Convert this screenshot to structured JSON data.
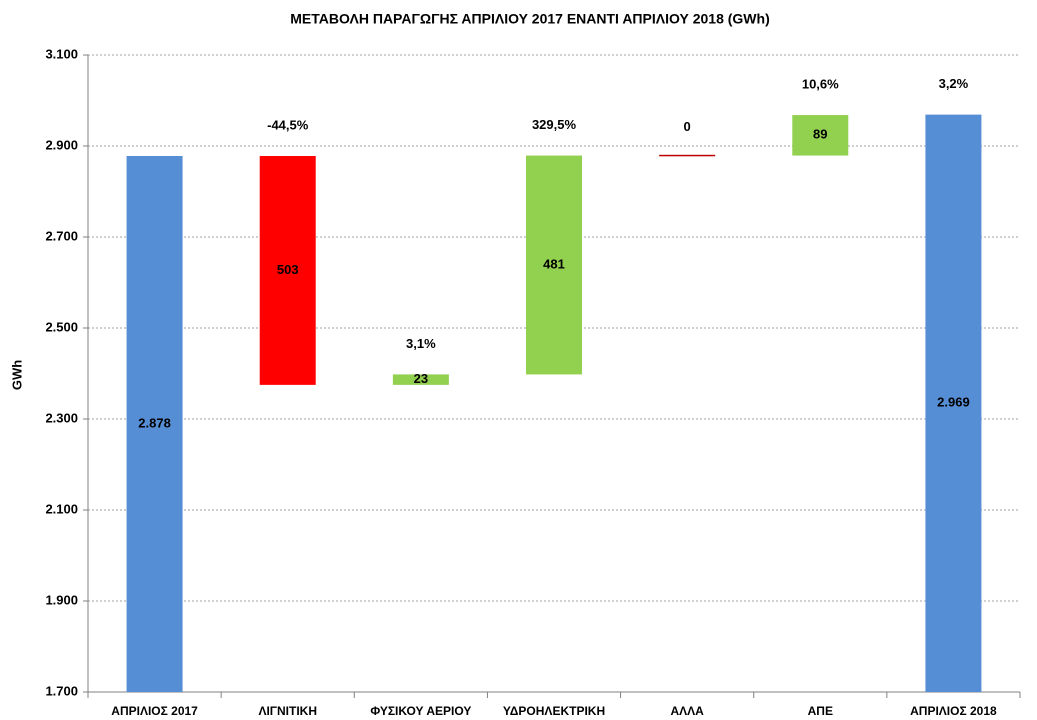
{
  "chart_data": {
    "type": "waterfall",
    "title": "ΜΕΤΑΒΟΛΗ ΠΑΡΑΓΩΓΗΣ ΑΠΡΙΛΙΟΥ 2017 ΕΝΑΝΤΙ ΑΠΡΙΛΙΟΥ 2018 (GWh)",
    "y_label": "GWh",
    "categories": [
      "ΑΠΡΙΛΙΟΣ 2017",
      "ΛΙΓΝΙΤΙΚΗ",
      "ΦΥΣΙΚΟΥ ΑΕΡΙΟΥ",
      "ΥΔΡΟΗΛΕΚΤΡΙΚΗ",
      "ΑΛΛΑ",
      "ΑΠΕ",
      "ΑΠΡΙΛΙΟΣ 2018"
    ],
    "values": [
      2878,
      -503,
      23,
      481,
      0,
      89,
      2969
    ],
    "value_labels": [
      "2.878",
      "503",
      "23",
      "481",
      "0",
      "89",
      "2.969"
    ],
    "change_labels": [
      null,
      "-44,5%",
      "3,1%",
      "329,5%",
      null,
      "10,6%",
      "3,2%"
    ],
    "totals": [
      true,
      false,
      false,
      false,
      false,
      false,
      true
    ],
    "colors": [
      "#558ed5",
      "#ff0000",
      "#92d050",
      "#92d050",
      "#c00000",
      "#92d050",
      "#558ed5"
    ],
    "ylim": [
      1700,
      3100
    ],
    "yticks": [
      {
        "value": 1700,
        "label": "1.700"
      },
      {
        "value": 1900,
        "label": "1.900"
      },
      {
        "value": 2100,
        "label": "2.100"
      },
      {
        "value": 2300,
        "label": "2.300"
      },
      {
        "value": 2500,
        "label": "2.500"
      },
      {
        "value": 2700,
        "label": "2.700"
      },
      {
        "value": 2900,
        "label": "2.900"
      },
      {
        "value": 3100,
        "label": "3.100"
      }
    ],
    "grid": true
  }
}
